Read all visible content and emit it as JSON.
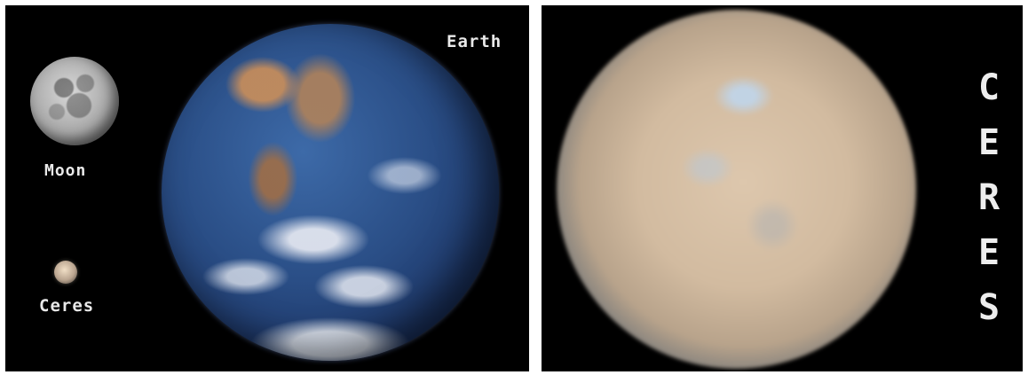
{
  "left_panel": {
    "moon_label": "Moon",
    "ceres_label": "Ceres",
    "earth_label": "Earth"
  },
  "right_panel": {
    "vertical_label_letters": [
      "C",
      "E",
      "R",
      "E",
      "S"
    ]
  },
  "colors": {
    "background": "#000000",
    "frame": "#ffffff",
    "label": "#e9e9e9"
  }
}
